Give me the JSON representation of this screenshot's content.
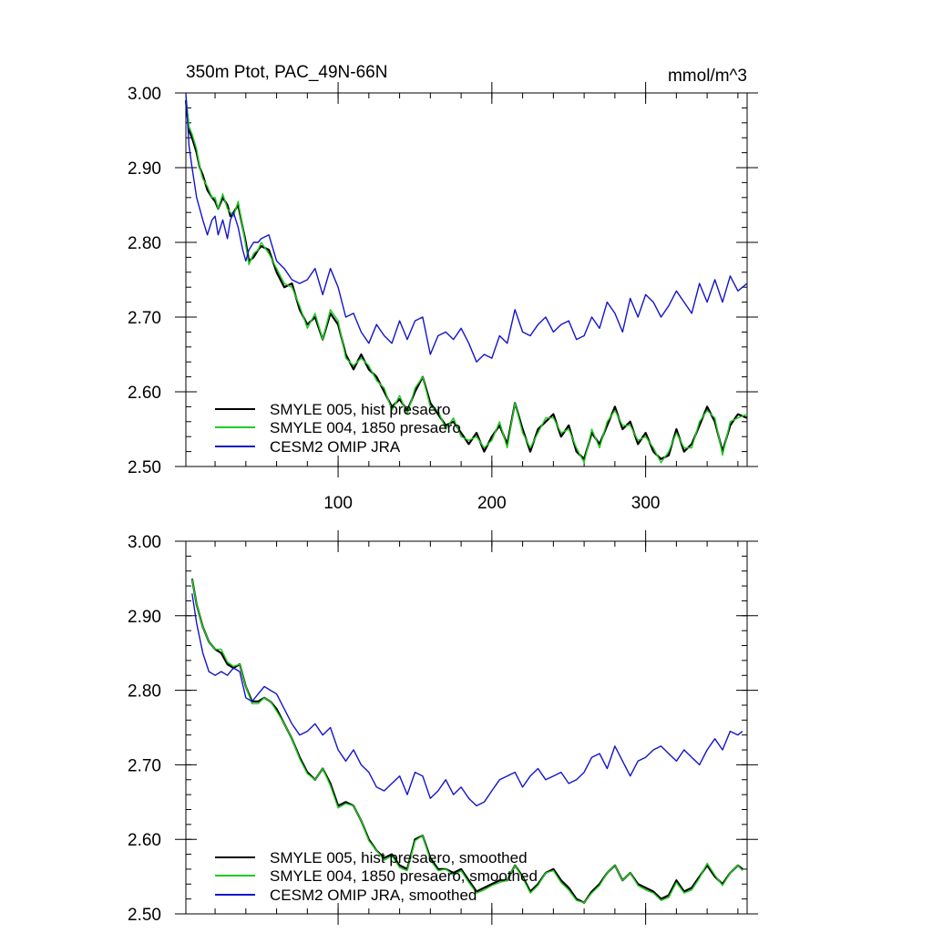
{
  "chart_data": [
    {
      "type": "line",
      "title": "350m Ptot, PAC_49N-66N",
      "units": "mmol/m^3",
      "xlim": [
        1,
        366
      ],
      "ylim": [
        2.5,
        3.0
      ],
      "xticks": [
        100,
        200,
        300
      ],
      "xtick_labels": [
        "100",
        "200",
        "300"
      ],
      "yticks": [
        2.5,
        2.6,
        2.7,
        2.8,
        2.9,
        3.0
      ],
      "ytick_labels": [
        "2.50",
        "2.60",
        "2.70",
        "2.80",
        "2.90",
        "3.00"
      ],
      "legend_position": "bottom-left",
      "series": [
        {
          "name": "SMYLE 005, hist presaero",
          "color": "#000000",
          "x": [
            1,
            3,
            5,
            8,
            10,
            12,
            15,
            18,
            20,
            22,
            25,
            28,
            30,
            32,
            35,
            38,
            40,
            42,
            45,
            48,
            50,
            55,
            60,
            65,
            70,
            75,
            80,
            85,
            90,
            95,
            100,
            105,
            110,
            115,
            120,
            125,
            130,
            135,
            140,
            145,
            150,
            155,
            160,
            165,
            170,
            175,
            180,
            185,
            190,
            195,
            200,
            205,
            210,
            215,
            220,
            225,
            230,
            235,
            240,
            245,
            250,
            255,
            260,
            265,
            270,
            275,
            280,
            285,
            290,
            295,
            300,
            305,
            310,
            315,
            320,
            325,
            330,
            335,
            340,
            345,
            350,
            355,
            360,
            366
          ],
          "y": [
            2.99,
            2.95,
            2.94,
            2.92,
            2.9,
            2.89,
            2.87,
            2.86,
            2.855,
            2.845,
            2.86,
            2.85,
            2.835,
            2.84,
            2.85,
            2.82,
            2.8,
            2.775,
            2.78,
            2.79,
            2.795,
            2.79,
            2.76,
            2.74,
            2.745,
            2.71,
            2.69,
            2.7,
            2.67,
            2.705,
            2.69,
            2.65,
            2.63,
            2.65,
            2.63,
            2.62,
            2.6,
            2.58,
            2.59,
            2.575,
            2.6,
            2.62,
            2.585,
            2.57,
            2.555,
            2.56,
            2.545,
            2.53,
            2.545,
            2.52,
            2.54,
            2.555,
            2.53,
            2.585,
            2.55,
            2.52,
            2.55,
            2.56,
            2.57,
            2.54,
            2.555,
            2.52,
            2.51,
            2.545,
            2.53,
            2.555,
            2.58,
            2.55,
            2.56,
            2.53,
            2.545,
            2.52,
            2.51,
            2.515,
            2.55,
            2.52,
            2.53,
            2.555,
            2.58,
            2.56,
            2.52,
            2.555,
            2.57,
            2.565
          ]
        },
        {
          "name": "SMYLE 004, 1850 presaero",
          "color": "#1fcc1f",
          "x": [
            1,
            3,
            5,
            8,
            10,
            12,
            15,
            18,
            20,
            22,
            25,
            28,
            30,
            32,
            35,
            38,
            40,
            42,
            45,
            48,
            50,
            55,
            60,
            65,
            70,
            75,
            80,
            85,
            90,
            95,
            100,
            105,
            110,
            115,
            120,
            125,
            130,
            135,
            140,
            145,
            150,
            155,
            160,
            165,
            170,
            175,
            180,
            185,
            190,
            195,
            200,
            205,
            210,
            215,
            220,
            225,
            230,
            235,
            240,
            245,
            250,
            255,
            260,
            265,
            270,
            275,
            280,
            285,
            290,
            295,
            300,
            305,
            310,
            315,
            320,
            325,
            330,
            335,
            340,
            345,
            350,
            355,
            360,
            366
          ],
          "y": [
            2.995,
            2.955,
            2.945,
            2.925,
            2.9,
            2.885,
            2.875,
            2.86,
            2.86,
            2.845,
            2.865,
            2.845,
            2.84,
            2.835,
            2.855,
            2.82,
            2.795,
            2.77,
            2.785,
            2.79,
            2.8,
            2.785,
            2.765,
            2.745,
            2.74,
            2.715,
            2.685,
            2.705,
            2.67,
            2.71,
            2.695,
            2.645,
            2.635,
            2.645,
            2.635,
            2.615,
            2.605,
            2.575,
            2.595,
            2.57,
            2.605,
            2.62,
            2.58,
            2.575,
            2.55,
            2.565,
            2.54,
            2.535,
            2.54,
            2.525,
            2.535,
            2.56,
            2.525,
            2.585,
            2.545,
            2.525,
            2.545,
            2.565,
            2.565,
            2.545,
            2.55,
            2.525,
            2.505,
            2.55,
            2.525,
            2.56,
            2.575,
            2.555,
            2.555,
            2.535,
            2.54,
            2.525,
            2.505,
            2.52,
            2.545,
            2.525,
            2.525,
            2.56,
            2.575,
            2.565,
            2.515,
            2.56,
            2.565,
            2.57
          ]
        },
        {
          "name": "CESM2 OMIP JRA",
          "color": "#1414cc",
          "x": [
            1,
            3,
            5,
            8,
            10,
            12,
            15,
            18,
            20,
            22,
            25,
            28,
            30,
            32,
            35,
            38,
            40,
            42,
            45,
            48,
            50,
            55,
            60,
            65,
            70,
            75,
            80,
            85,
            90,
            95,
            100,
            105,
            110,
            115,
            120,
            125,
            130,
            135,
            140,
            145,
            150,
            155,
            160,
            165,
            170,
            175,
            180,
            185,
            190,
            195,
            200,
            205,
            210,
            215,
            220,
            225,
            230,
            235,
            240,
            245,
            250,
            255,
            260,
            265,
            270,
            275,
            280,
            285,
            290,
            295,
            300,
            305,
            310,
            315,
            320,
            325,
            330,
            335,
            340,
            345,
            350,
            355,
            360,
            366
          ],
          "y": [
            3.0,
            2.93,
            2.9,
            2.86,
            2.845,
            2.83,
            2.81,
            2.83,
            2.835,
            2.81,
            2.83,
            2.805,
            2.83,
            2.84,
            2.82,
            2.79,
            2.775,
            2.79,
            2.8,
            2.8,
            2.805,
            2.81,
            2.775,
            2.765,
            2.75,
            2.745,
            2.75,
            2.765,
            2.73,
            2.765,
            2.74,
            2.7,
            2.705,
            2.68,
            2.665,
            2.69,
            2.675,
            2.665,
            2.695,
            2.67,
            2.695,
            2.7,
            2.65,
            2.675,
            2.68,
            2.67,
            2.685,
            2.665,
            2.64,
            2.65,
            2.645,
            2.675,
            2.665,
            2.71,
            2.68,
            2.675,
            2.69,
            2.7,
            2.68,
            2.69,
            2.695,
            2.67,
            2.675,
            2.7,
            2.685,
            2.72,
            2.705,
            2.68,
            2.725,
            2.7,
            2.73,
            2.72,
            2.7,
            2.715,
            2.735,
            2.72,
            2.705,
            2.745,
            2.72,
            2.75,
            2.72,
            2.755,
            2.735,
            2.745
          ]
        }
      ]
    },
    {
      "type": "line",
      "xlim": [
        1,
        366
      ],
      "ylim": [
        2.5,
        3.0
      ],
      "xticks": [
        100,
        200,
        300
      ],
      "yticks": [
        2.5,
        2.6,
        2.7,
        2.8,
        2.9,
        3.0
      ],
      "ytick_labels": [
        "2.50",
        "2.60",
        "2.70",
        "2.80",
        "2.90",
        "3.00"
      ],
      "legend_position": "bottom-left",
      "series": [
        {
          "name": "SMYLE 005, hist presaero, smoothed",
          "color": "#000000",
          "x": [
            5,
            8,
            12,
            16,
            20,
            24,
            28,
            32,
            36,
            40,
            44,
            48,
            52,
            56,
            60,
            65,
            70,
            75,
            80,
            85,
            90,
            95,
            100,
            105,
            110,
            115,
            120,
            125,
            130,
            135,
            140,
            145,
            150,
            155,
            160,
            165,
            170,
            175,
            180,
            185,
            190,
            195,
            200,
            205,
            210,
            215,
            220,
            225,
            230,
            235,
            240,
            245,
            250,
            255,
            260,
            265,
            270,
            275,
            280,
            285,
            290,
            295,
            300,
            305,
            310,
            315,
            320,
            325,
            330,
            335,
            340,
            345,
            350,
            355,
            360,
            363
          ],
          "y": [
            2.95,
            2.915,
            2.885,
            2.865,
            2.855,
            2.85,
            2.835,
            2.83,
            2.835,
            2.805,
            2.785,
            2.785,
            2.79,
            2.785,
            2.775,
            2.755,
            2.735,
            2.71,
            2.69,
            2.68,
            2.695,
            2.675,
            2.645,
            2.65,
            2.645,
            2.625,
            2.6,
            2.585,
            2.575,
            2.58,
            2.565,
            2.56,
            2.6,
            2.605,
            2.575,
            2.56,
            2.56,
            2.555,
            2.56,
            2.545,
            2.53,
            2.535,
            2.54,
            2.545,
            2.545,
            2.565,
            2.55,
            2.53,
            2.54,
            2.555,
            2.56,
            2.545,
            2.535,
            2.52,
            2.515,
            2.53,
            2.54,
            2.555,
            2.565,
            2.545,
            2.555,
            2.54,
            2.535,
            2.53,
            2.52,
            2.525,
            2.545,
            2.53,
            2.535,
            2.55,
            2.565,
            2.55,
            2.54,
            2.555,
            2.565,
            2.56
          ]
        },
        {
          "name": "SMYLE 004, 1850 presaero, smoothed",
          "color": "#1fcc1f",
          "x": [
            5,
            8,
            12,
            16,
            20,
            24,
            28,
            32,
            36,
            40,
            44,
            48,
            52,
            56,
            60,
            65,
            70,
            75,
            80,
            85,
            90,
            95,
            100,
            105,
            110,
            115,
            120,
            125,
            130,
            135,
            140,
            145,
            150,
            155,
            160,
            165,
            170,
            175,
            180,
            185,
            190,
            195,
            200,
            205,
            210,
            215,
            220,
            225,
            230,
            235,
            240,
            245,
            250,
            255,
            260,
            265,
            270,
            275,
            280,
            285,
            290,
            295,
            300,
            305,
            310,
            315,
            320,
            325,
            330,
            335,
            340,
            345,
            350,
            355,
            360,
            363
          ],
          "y": [
            2.95,
            2.915,
            2.885,
            2.865,
            2.855,
            2.855,
            2.838,
            2.832,
            2.835,
            2.805,
            2.782,
            2.782,
            2.79,
            2.785,
            2.772,
            2.755,
            2.735,
            2.708,
            2.688,
            2.68,
            2.695,
            2.672,
            2.642,
            2.648,
            2.645,
            2.625,
            2.598,
            2.585,
            2.572,
            2.578,
            2.562,
            2.558,
            2.598,
            2.605,
            2.572,
            2.558,
            2.56,
            2.552,
            2.558,
            2.542,
            2.528,
            2.532,
            2.538,
            2.542,
            2.545,
            2.565,
            2.548,
            2.528,
            2.538,
            2.555,
            2.558,
            2.542,
            2.532,
            2.518,
            2.515,
            2.528,
            2.538,
            2.555,
            2.565,
            2.545,
            2.555,
            2.538,
            2.532,
            2.528,
            2.518,
            2.522,
            2.542,
            2.528,
            2.532,
            2.548,
            2.568,
            2.552,
            2.538,
            2.555,
            2.565,
            2.558
          ]
        },
        {
          "name": "CESM2 OMIP JRA, smoothed",
          "color": "#1414cc",
          "x": [
            5,
            8,
            12,
            16,
            20,
            24,
            28,
            32,
            36,
            40,
            44,
            48,
            52,
            56,
            60,
            65,
            70,
            75,
            80,
            85,
            90,
            95,
            100,
            105,
            110,
            115,
            120,
            125,
            130,
            135,
            140,
            145,
            150,
            155,
            160,
            165,
            170,
            175,
            180,
            185,
            190,
            195,
            200,
            205,
            210,
            215,
            220,
            225,
            230,
            235,
            240,
            245,
            250,
            255,
            260,
            265,
            270,
            275,
            280,
            285,
            290,
            295,
            300,
            305,
            310,
            315,
            320,
            325,
            330,
            335,
            340,
            345,
            350,
            355,
            360,
            363
          ],
          "y": [
            2.93,
            2.89,
            2.85,
            2.825,
            2.82,
            2.825,
            2.82,
            2.83,
            2.825,
            2.79,
            2.785,
            2.795,
            2.805,
            2.8,
            2.795,
            2.775,
            2.755,
            2.74,
            2.745,
            2.755,
            2.74,
            2.75,
            2.72,
            2.705,
            2.72,
            2.7,
            2.69,
            2.67,
            2.665,
            2.675,
            2.685,
            2.66,
            2.69,
            2.685,
            2.655,
            2.665,
            2.68,
            2.66,
            2.67,
            2.655,
            2.645,
            2.65,
            2.665,
            2.68,
            2.685,
            2.69,
            2.67,
            2.685,
            2.695,
            2.68,
            2.685,
            2.69,
            2.675,
            2.68,
            2.69,
            2.71,
            2.715,
            2.695,
            2.725,
            2.705,
            2.685,
            2.705,
            2.71,
            2.72,
            2.725,
            2.715,
            2.705,
            2.72,
            2.71,
            2.7,
            2.72,
            2.735,
            2.72,
            2.745,
            2.74,
            2.745
          ]
        }
      ]
    }
  ]
}
